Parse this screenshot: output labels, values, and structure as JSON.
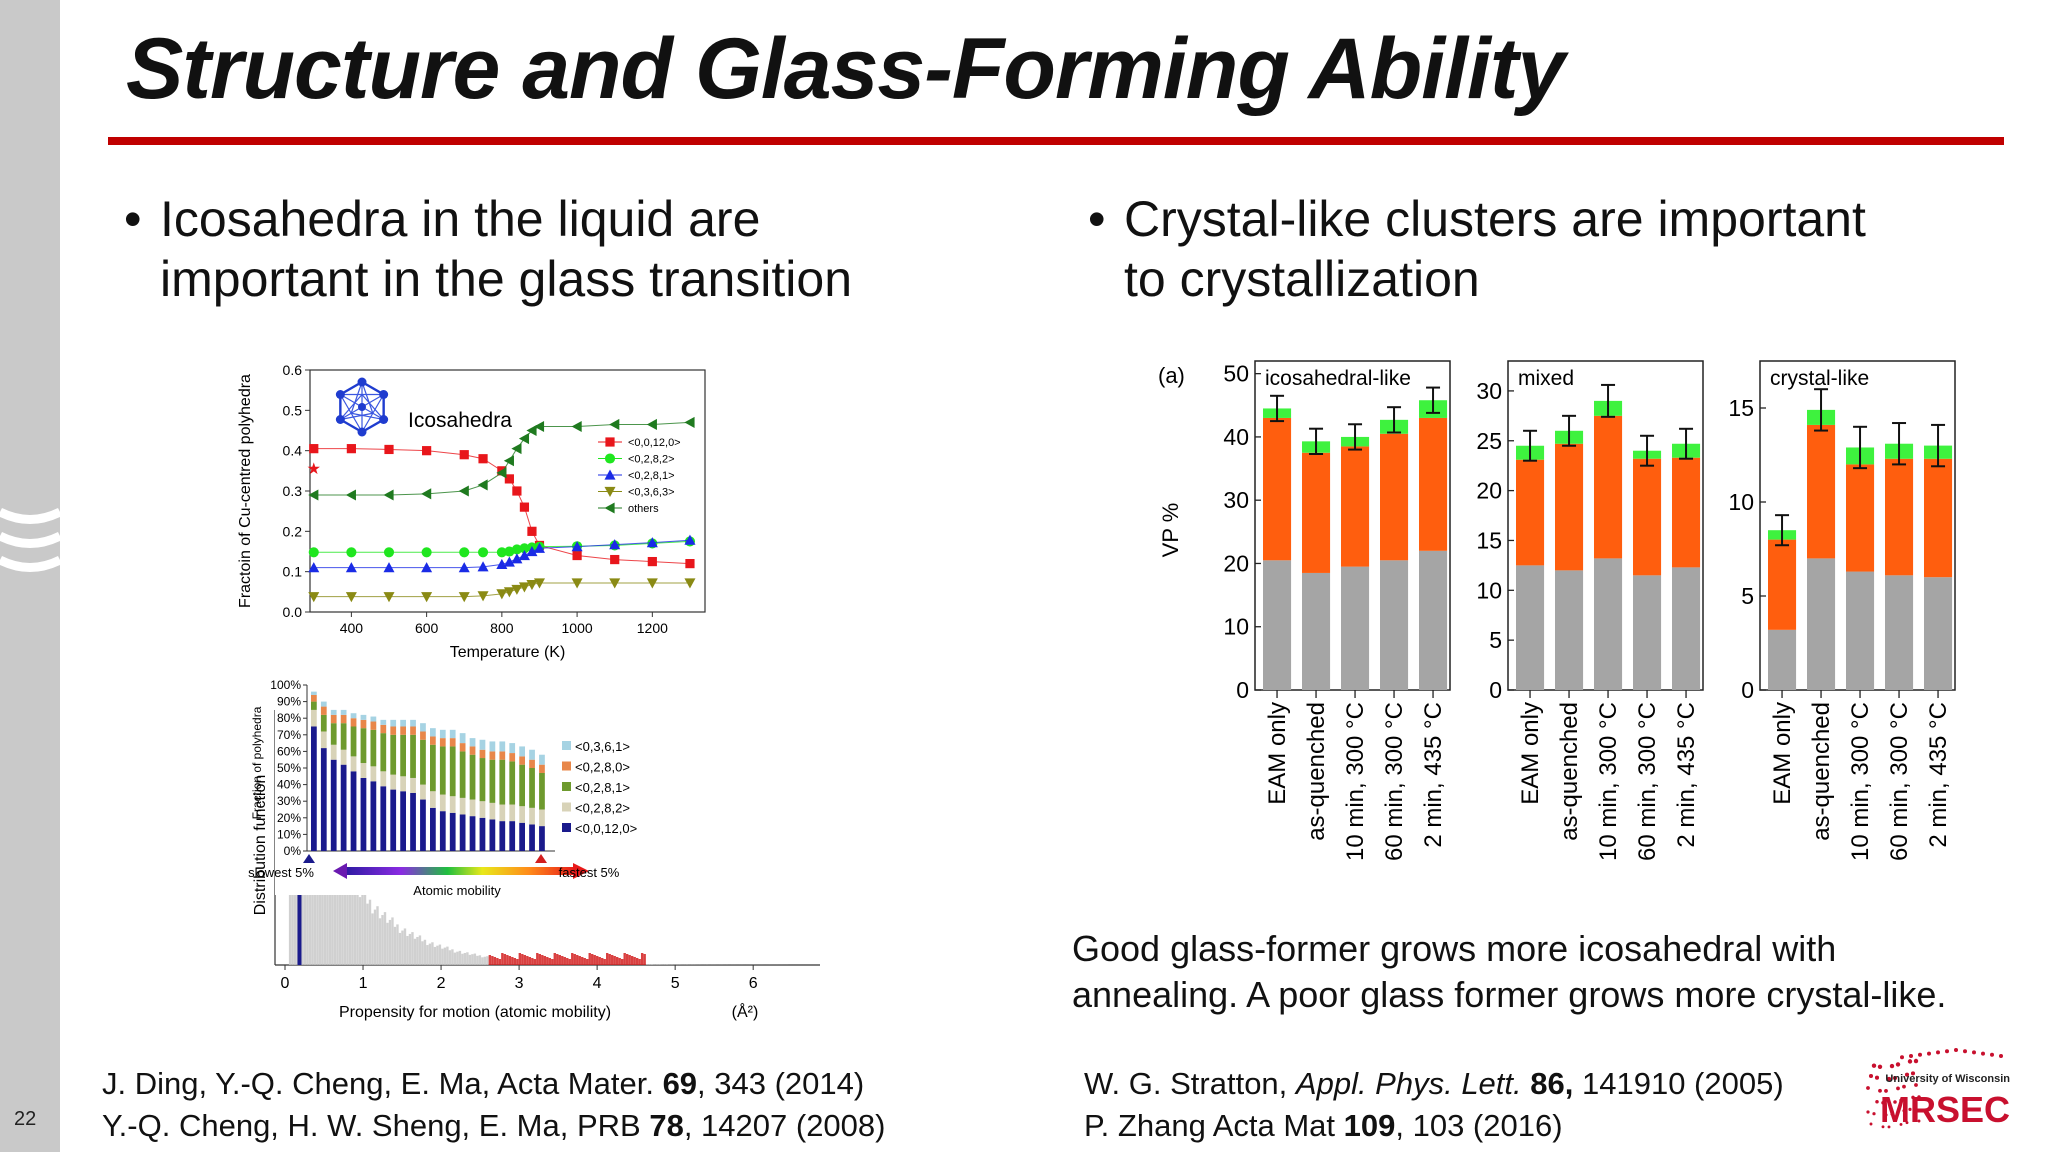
{
  "slide": {
    "number": "22",
    "title": "Structure and Glass-Forming Ability",
    "colors": {
      "rule": "#c00000",
      "sidebar": "#c9c9c9"
    }
  },
  "left_bullet": {
    "line1": "Icosahedra in the liquid are",
    "line2": "important in the glass transition"
  },
  "right_bullet": {
    "line1": "Crystal-like clusters are important",
    "line2": "to crystallization"
  },
  "caption": {
    "line1": "Good glass-former grows more icosahedral with",
    "line2": "annealing. A poor glass former grows more crystal-like."
  },
  "references_left": {
    "line1": {
      "pre": "J. Ding, Y.-Q. Cheng, E. Ma, Acta Mater. ",
      "bold": "69",
      "post": ", 343 (2014)"
    },
    "line2": {
      "pre": "Y.-Q. Cheng, H. W. Sheng, E. Ma, PRB ",
      "bold": "78",
      "post": ", 14207 (2008)"
    }
  },
  "references_right": {
    "line1": {
      "pre": "W. G. Stratton, ",
      "italic": "Appl. Phys. Lett.",
      "mid": " ",
      "bold": "86,",
      "post": " 141910 (2005)"
    },
    "line2": {
      "pre": "P. Zhang Acta Mat ",
      "bold": "109",
      "post": ", 103 (2016)"
    }
  },
  "logo": {
    "top": "University of Wisconsin",
    "main": "MRSEC",
    "icon": "dot-pattern-logo",
    "color": "#c8102e"
  },
  "chart_data": [
    {
      "type": "line",
      "ylabel": "Fractoin of Cu-centred polyhedra",
      "xlabel": "Temperature (K)",
      "xlim": [
        290,
        1340
      ],
      "ylim": [
        0,
        0.6
      ],
      "xticks": [
        "400",
        "600",
        "800",
        "1000",
        "1200"
      ],
      "yticks": [
        "0.0",
        "0.1",
        "0.2",
        "0.3",
        "0.4",
        "0.5",
        "0.6"
      ],
      "inset_label": "Icosahedra",
      "legend_position": "right",
      "series": [
        {
          "name": "<0,0,12,0>",
          "color": "#e8161b",
          "marker": "square",
          "x": [
            300,
            400,
            500,
            600,
            700,
            750,
            800,
            820,
            840,
            860,
            880,
            900,
            1000,
            1100,
            1200,
            1300
          ],
          "y": [
            0.405,
            0.405,
            0.403,
            0.4,
            0.39,
            0.38,
            0.35,
            0.33,
            0.3,
            0.26,
            0.2,
            0.165,
            0.14,
            0.13,
            0.125,
            0.12
          ]
        },
        {
          "name": "<0,2,8,2>",
          "color": "#1fe61f",
          "marker": "circle",
          "x": [
            300,
            400,
            500,
            600,
            700,
            750,
            800,
            820,
            840,
            860,
            880,
            900,
            1000,
            1100,
            1200,
            1300
          ],
          "y": [
            0.148,
            0.148,
            0.148,
            0.148,
            0.148,
            0.148,
            0.148,
            0.15,
            0.155,
            0.158,
            0.16,
            0.162,
            0.163,
            0.165,
            0.17,
            0.175
          ]
        },
        {
          "name": "<0,2,8,1>",
          "color": "#1a2be6",
          "marker": "triangle-up",
          "x": [
            300,
            400,
            500,
            600,
            700,
            750,
            800,
            820,
            840,
            860,
            880,
            900,
            1000,
            1100,
            1200,
            1300
          ],
          "y": [
            0.11,
            0.11,
            0.11,
            0.11,
            0.11,
            0.112,
            0.118,
            0.124,
            0.132,
            0.14,
            0.15,
            0.158,
            0.162,
            0.167,
            0.172,
            0.178
          ]
        },
        {
          "name": "<0,3,6,3>",
          "color": "#8a8a14",
          "marker": "triangle-down",
          "x": [
            300,
            400,
            500,
            600,
            700,
            750,
            800,
            820,
            840,
            860,
            880,
            900,
            1000,
            1100,
            1200,
            1300
          ],
          "y": [
            0.038,
            0.038,
            0.038,
            0.038,
            0.038,
            0.04,
            0.045,
            0.05,
            0.056,
            0.062,
            0.068,
            0.072,
            0.072,
            0.072,
            0.072,
            0.072
          ]
        },
        {
          "name": "others",
          "color": "#1f7a1f",
          "marker": "triangle-left",
          "x": [
            300,
            400,
            500,
            600,
            700,
            750,
            800,
            820,
            840,
            860,
            880,
            900,
            1000,
            1100,
            1200,
            1300
          ],
          "y": [
            0.29,
            0.29,
            0.29,
            0.293,
            0.3,
            0.315,
            0.345,
            0.375,
            0.405,
            0.43,
            0.45,
            0.46,
            0.46,
            0.465,
            0.465,
            0.47
          ]
        }
      ],
      "extra_points": [
        {
          "x": 300,
          "y": 0.355,
          "marker": "star",
          "color": "#e8161b"
        }
      ]
    },
    {
      "type": "bar",
      "stacked": true,
      "ylabel": "Fraction of polyhedra",
      "yticks": [
        "0%",
        "10%",
        "20%",
        "30%",
        "40%",
        "50%",
        "60%",
        "70%",
        "80%",
        "90%",
        "100%"
      ],
      "ylim": [
        0,
        100
      ],
      "xaxis_label": "Atomic mobility",
      "left_label": "slowest 5%",
      "right_label": "fastest 5%",
      "legend_position": "right",
      "series": [
        {
          "name": "<0,0,12,0>",
          "color": "#1a1a8c",
          "values": [
            75,
            62,
            55,
            52,
            48,
            44,
            42,
            39,
            37,
            36,
            35,
            31,
            26,
            24,
            23,
            22,
            21,
            20,
            19,
            18,
            18,
            17,
            16,
            15
          ]
        },
        {
          "name": "<0,2,8,2>",
          "color": "#d8d3b8",
          "values": [
            10,
            10,
            9,
            9,
            9,
            9,
            9,
            9,
            9,
            9,
            9,
            9,
            10,
            10,
            10,
            10,
            10,
            10,
            10,
            10,
            10,
            10,
            10,
            10
          ]
        },
        {
          "name": "<0,2,8,1>",
          "color": "#6e9a2e",
          "values": [
            5,
            10,
            13,
            16,
            18,
            21,
            22,
            23,
            24,
            25,
            26,
            27,
            28,
            29,
            30,
            28,
            27,
            26,
            26,
            27,
            26,
            25,
            24,
            22
          ]
        },
        {
          "name": "<0,2,8,0>",
          "color": "#e8874a",
          "values": [
            4,
            5,
            5,
            5,
            5,
            5,
            5,
            5,
            5,
            5,
            5,
            5,
            5,
            5,
            5,
            5,
            5,
            5,
            5,
            5,
            5,
            5,
            5,
            5
          ]
        },
        {
          "name": "<0,3,6,1>",
          "color": "#a6d3e3",
          "values": [
            2,
            3,
            3,
            3,
            3,
            3,
            3,
            3,
            4,
            4,
            4,
            5,
            5,
            5,
            5,
            6,
            5,
            6,
            6,
            6,
            6,
            6,
            6,
            6
          ]
        }
      ]
    },
    {
      "type": "area",
      "ylabel": "Distribution function",
      "xlabel": "Propensity for motion (atomic mobility)",
      "xunit": "(Å²)",
      "xlim": [
        0,
        7
      ],
      "xticks": [
        "0",
        "1",
        "2",
        "3",
        "4",
        "5",
        "6"
      ],
      "colors": {
        "main": "#c8c8c8",
        "slow": "#1a1a8c",
        "fast": "#d21e1e"
      }
    },
    {
      "type": "bar",
      "stacked": true,
      "panel_tag": "(a)",
      "ylabel": "VP %",
      "categories": [
        "EAM only",
        "as-quenched",
        "10 min, 300 °C",
        "60 min, 300 °C",
        "2 min, 435 °C"
      ],
      "colors": {
        "gray": "#a5a5a5",
        "orange": "#ff5e0e",
        "green": "#3ef23e"
      },
      "panels": [
        {
          "title": "icosahedral-like",
          "ylim": [
            0,
            52
          ],
          "yticks": [
            "0",
            "10",
            "20",
            "30",
            "40",
            "50"
          ],
          "gray": [
            20.5,
            18.5,
            19.5,
            20.5,
            22
          ],
          "orange": [
            22.5,
            19,
            19,
            20,
            21
          ],
          "green": [
            1.5,
            1.8,
            1.5,
            2.2,
            2.8
          ],
          "error": [
            2,
            2,
            2,
            2,
            2
          ]
        },
        {
          "title": "mixed",
          "ylim": [
            0,
            33
          ],
          "yticks": [
            "0",
            "5",
            "10",
            "15",
            "20",
            "25",
            "30"
          ],
          "gray": [
            12.5,
            12,
            13.2,
            11.5,
            12.3
          ],
          "orange": [
            10.6,
            12.7,
            14.3,
            11.7,
            11
          ],
          "green": [
            1.4,
            1.3,
            1.5,
            0.8,
            1.4
          ],
          "error": [
            1.5,
            1.5,
            1.6,
            1.5,
            1.5
          ]
        },
        {
          "title": "crystal-like",
          "ylim": [
            0,
            17.5
          ],
          "yticks": [
            "0",
            "5",
            "10",
            "15"
          ],
          "gray": [
            3.2,
            7,
            6.3,
            6.1,
            6
          ],
          "orange": [
            4.8,
            7.1,
            5.7,
            6.2,
            6.3
          ],
          "green": [
            0.5,
            0.8,
            0.9,
            0.8,
            0.7
          ],
          "error": [
            0.8,
            1.1,
            1.1,
            1.1,
            1.1
          ]
        }
      ]
    }
  ]
}
